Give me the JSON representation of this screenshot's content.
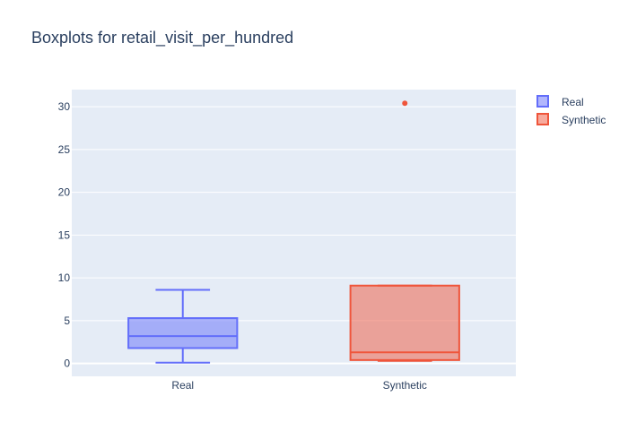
{
  "chart_data": {
    "type": "box",
    "title": "Boxplots for retail_visit_per_hundred",
    "xlabel": "",
    "ylabel": "",
    "categories": [
      "Real",
      "Synthetic"
    ],
    "ylim": [
      -1.5,
      32
    ],
    "yticks": [
      0,
      5,
      10,
      15,
      20,
      25,
      30
    ],
    "grid": true,
    "legend_position": "top-right",
    "series": [
      {
        "name": "Real",
        "color": "#636efa",
        "fill": "rgba(99,110,250,0.5)",
        "min": 0.1,
        "q1": 1.8,
        "median": 3.2,
        "q3": 5.3,
        "max": 8.6,
        "outliers": []
      },
      {
        "name": "Synthetic",
        "color": "#ef553b",
        "fill": "rgba(239,85,59,0.5)",
        "min": 0.3,
        "q1": 0.4,
        "median": 1.3,
        "q3": 9.1,
        "max": 9.1,
        "outliers": [
          30.4
        ]
      }
    ]
  }
}
